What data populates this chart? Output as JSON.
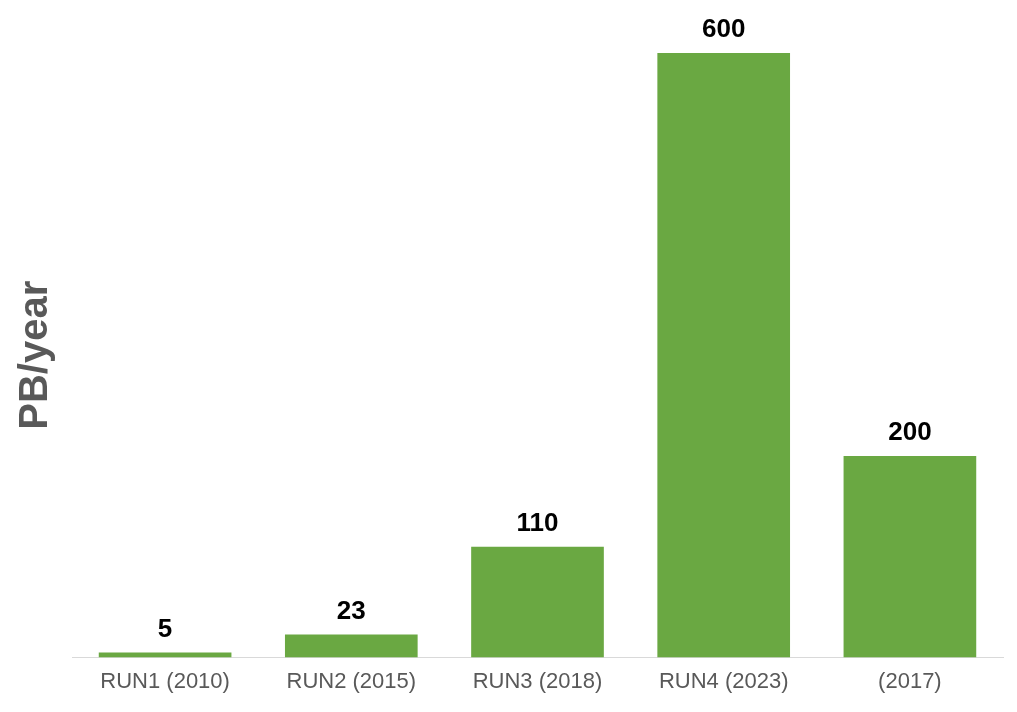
{
  "chart_data": {
    "type": "bar",
    "ylabel": "PB/year",
    "categories": [
      "RUN1 (2010)",
      "RUN2 (2015)",
      "RUN3 (2018)",
      "RUN4 (2023)",
      "(2017)"
    ],
    "values": [
      5,
      23,
      110,
      600,
      200
    ],
    "color": "#6aa842",
    "data_labels": true,
    "grid": false,
    "legend": false
  }
}
